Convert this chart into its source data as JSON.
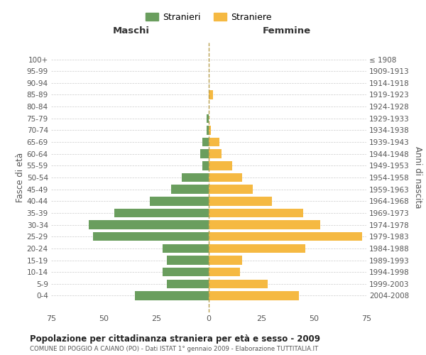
{
  "age_groups": [
    "0-4",
    "5-9",
    "10-14",
    "15-19",
    "20-24",
    "25-29",
    "30-34",
    "35-39",
    "40-44",
    "45-49",
    "50-54",
    "55-59",
    "60-64",
    "65-69",
    "70-74",
    "75-79",
    "80-84",
    "85-89",
    "90-94",
    "95-99",
    "100+"
  ],
  "birth_years": [
    "2004-2008",
    "1999-2003",
    "1994-1998",
    "1989-1993",
    "1984-1988",
    "1979-1983",
    "1974-1978",
    "1969-1973",
    "1964-1968",
    "1959-1963",
    "1954-1958",
    "1949-1953",
    "1944-1948",
    "1939-1943",
    "1934-1938",
    "1929-1933",
    "1924-1928",
    "1919-1923",
    "1914-1918",
    "1909-1913",
    "≤ 1908"
  ],
  "males": [
    35,
    20,
    22,
    20,
    22,
    55,
    57,
    45,
    28,
    18,
    13,
    3,
    4,
    3,
    1,
    1,
    0,
    0,
    0,
    0,
    0
  ],
  "females": [
    43,
    28,
    15,
    16,
    46,
    73,
    53,
    45,
    30,
    21,
    16,
    11,
    6,
    5,
    1,
    0,
    0,
    2,
    0,
    0,
    0
  ],
  "male_color": "#6a9e5e",
  "female_color": "#f5b942",
  "center_line_color": "#b8a050",
  "grid_color": "#cccccc",
  "bg_color": "#ffffff",
  "title": "Popolazione per cittadinanza straniera per età e sesso - 2009",
  "subtitle": "COMUNE DI POGGIO A CAIANO (PO) - Dati ISTAT 1° gennaio 2009 - Elaborazione TUTTITALIA.IT",
  "xlabel_left": "Maschi",
  "xlabel_right": "Femmine",
  "ylabel_left": "Fasce di età",
  "ylabel_right": "Anni di nascita",
  "legend_male": "Stranieri",
  "legend_female": "Straniere",
  "xlim": 75
}
